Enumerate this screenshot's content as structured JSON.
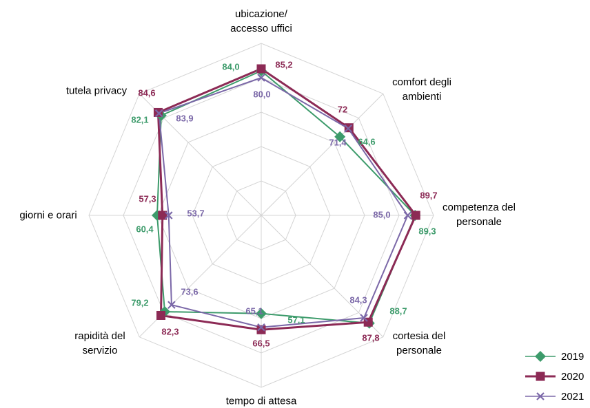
{
  "chart_data": {
    "type": "radar",
    "categories": [
      "ubicazione/\naccesso uffici",
      "comfort degli\nambienti",
      "competenza del\npersonale",
      "cortesia del\npersonale",
      "tempo di attesa",
      "rapidità del\nservizio",
      "giorni e orari",
      "tutela privacy"
    ],
    "rlim": [
      0,
      100
    ],
    "rticks": [
      0,
      20,
      40,
      60,
      80,
      100
    ],
    "grid": true,
    "legend": "bottom-right",
    "series": [
      {
        "name": "2019",
        "color": "#3d9b6b",
        "marker": "diamond",
        "values": [
          84.0,
          64.6,
          89.3,
          88.7,
          57.1,
          79.2,
          60.4,
          82.1
        ],
        "value_labels": [
          "84,0",
          "64,6",
          "89,3",
          "88,7",
          "57,1",
          "79,2",
          "60,4",
          "82,1"
        ]
      },
      {
        "name": "2020",
        "color": "#8c2a55",
        "marker": "square",
        "values": [
          85.2,
          72,
          89.7,
          87.8,
          66.5,
          82.3,
          57.3,
          84.6
        ],
        "value_labels": [
          "85,2",
          "72",
          "89,7",
          "87,8",
          "66,5",
          "82,3",
          "57,3",
          "84,6"
        ]
      },
      {
        "name": "2021",
        "color": "#7b68a8",
        "marker": "x",
        "values": [
          80.0,
          71.4,
          85.0,
          84.3,
          65.1,
          73.6,
          53.7,
          83.9
        ],
        "value_labels": [
          "80,0",
          "71,4",
          "85,0",
          "84,3",
          "65,1",
          "73,6",
          "53,7",
          "83,9"
        ]
      }
    ]
  }
}
